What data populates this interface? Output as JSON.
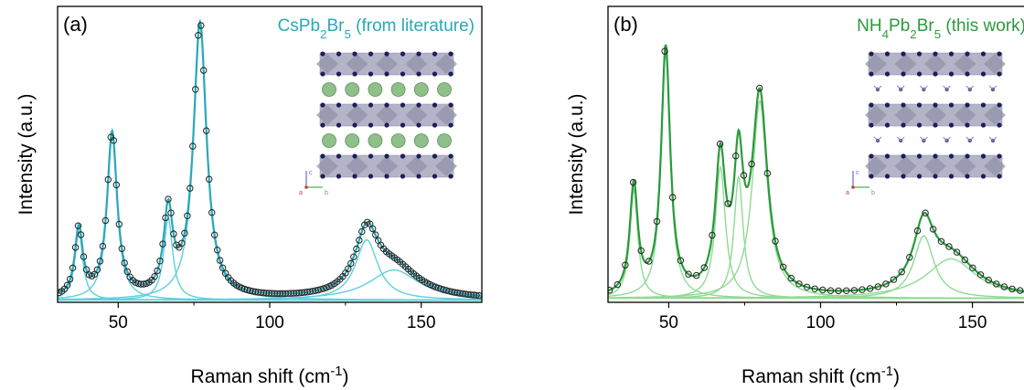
{
  "chart_data": [
    {
      "type": "line",
      "panel_label": "(a)",
      "title_parts": {
        "base": "CsPb",
        "s1": "2",
        "mid": "Br",
        "s2": "5",
        "tail": " (from literature)"
      },
      "title_color": "#2aa8b8",
      "xlabel": {
        "text": "Raman shift (cm",
        "sup": "-1",
        "close": ")"
      },
      "ylabel": "Intensity (a.u.)",
      "xlim": [
        30,
        170
      ],
      "ylim": [
        0,
        1.08
      ],
      "xticks": [
        50,
        100,
        150
      ],
      "colors": {
        "fit": "#2aa8b8",
        "components": "#5dd0de",
        "markers": "#222222"
      },
      "baseline": 0.008,
      "series": [
        {
          "role": "components",
          "peaks": [
            {
              "x0": 37.0,
              "amp": 0.25,
              "w": 1.6
            },
            {
              "x0": 48.0,
              "amp": 0.6,
              "w": 2.0
            },
            {
              "x0": 66.5,
              "amp": 0.3,
              "w": 1.8
            },
            {
              "x0": 77.0,
              "amp": 1.0,
              "w": 2.6
            },
            {
              "x0": 132.0,
              "amp": 0.22,
              "w": 4.5
            },
            {
              "x0": 141.0,
              "amp": 0.11,
              "w": 10.0
            }
          ]
        }
      ],
      "inset": {
        "axes": [
          "c",
          "a",
          "b"
        ],
        "layers": [
          "octahedra",
          "cations",
          "octahedra",
          "cations",
          "octahedra"
        ],
        "cation_style": "sphere"
      }
    },
    {
      "type": "line",
      "panel_label": "(b)",
      "title_parts": {
        "base": "NH",
        "s1": "4",
        "mid": "Pb",
        "s2": "2",
        "mid2": "Br",
        "s3": "5",
        "tail": " (this work)"
      },
      "title_color": "#2c9a3c",
      "xlabel": {
        "text": "Raman shift (cm",
        "sup": "-1",
        "close": ")"
      },
      "ylabel": "Intensity (a.u.)",
      "xlim": [
        30,
        170
      ],
      "ylim": [
        0,
        0.9
      ],
      "xticks": [
        50,
        100,
        150
      ],
      "colors": {
        "fit": "#2a9a3c",
        "components": "#8fdb93",
        "markers": "#222222"
      },
      "baseline": 0.012,
      "series": [
        {
          "role": "components",
          "peaks": [
            {
              "x0": 38.5,
              "amp": 0.33,
              "w": 1.6
            },
            {
              "x0": 49.0,
              "amp": 0.75,
              "w": 1.8
            },
            {
              "x0": 67.0,
              "amp": 0.4,
              "w": 2.0
            },
            {
              "x0": 73.0,
              "amp": 0.37,
              "w": 1.8
            },
            {
              "x0": 80.0,
              "amp": 0.6,
              "w": 3.0
            },
            {
              "x0": 134.0,
              "amp": 0.19,
              "w": 4.0
            },
            {
              "x0": 143.0,
              "amp": 0.12,
              "w": 10.0
            }
          ]
        }
      ],
      "inset": {
        "axes": [
          "c",
          "a",
          "b"
        ],
        "layers": [
          "octahedra",
          "cations",
          "octahedra",
          "cations",
          "octahedra"
        ],
        "cation_style": "ammonium"
      }
    }
  ]
}
